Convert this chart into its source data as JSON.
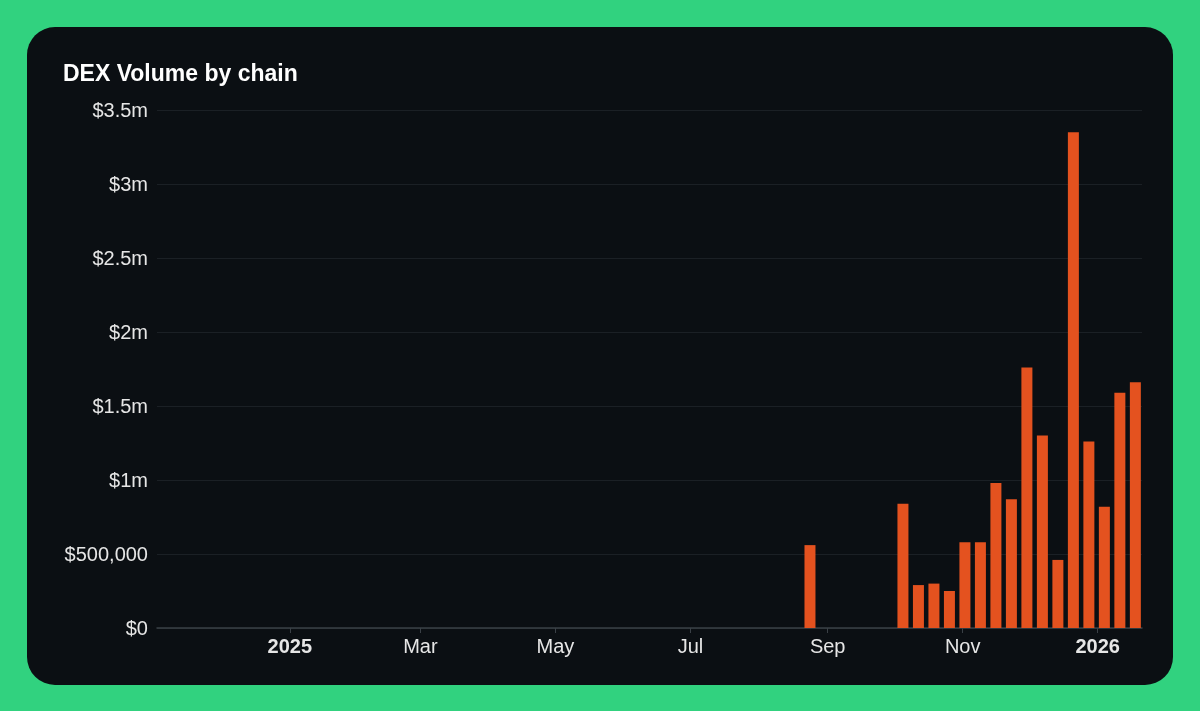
{
  "chart_data": {
    "type": "bar",
    "title": "DEX Volume by chain",
    "x": [
      "2025-08-24",
      "2025-10-05",
      "2025-10-12",
      "2025-10-19",
      "2025-10-26",
      "2025-11-02",
      "2025-11-09",
      "2025-11-16",
      "2025-11-23",
      "2025-11-30",
      "2025-12-07",
      "2025-12-14",
      "2025-12-21",
      "2025-12-28",
      "2026-01-04",
      "2026-01-11",
      "2026-01-18"
    ],
    "values": [
      560000,
      840000,
      290000,
      300000,
      250000,
      580000,
      580000,
      980000,
      870000,
      1760000,
      1300000,
      460000,
      3350000,
      1260000,
      820000,
      1590000,
      1660000
    ],
    "color": "#e4521f",
    "xlim": [
      "2024-11-02",
      "2026-01-21"
    ],
    "xticks": [
      {
        "value": "2025-01-01",
        "label": "2025"
      },
      {
        "value": "2025-03-01",
        "label": "Mar"
      },
      {
        "value": "2025-05-01",
        "label": "May"
      },
      {
        "value": "2025-07-01",
        "label": "Jul"
      },
      {
        "value": "2025-09-01",
        "label": "Sep"
      },
      {
        "value": "2025-11-01",
        "label": "Nov"
      },
      {
        "value": "2026-01-01",
        "label": "2026"
      }
    ],
    "ylim": [
      0,
      3500000
    ],
    "yticks": [
      {
        "value": 0,
        "label": "$0"
      },
      {
        "value": 500000,
        "label": "$500,000"
      },
      {
        "value": 1000000,
        "label": "$1m"
      },
      {
        "value": 1500000,
        "label": "$1.5m"
      },
      {
        "value": 2000000,
        "label": "$2m"
      },
      {
        "value": 2500000,
        "label": "$2.5m"
      },
      {
        "value": 3000000,
        "label": "$3m"
      },
      {
        "value": 3500000,
        "label": "$3.5m"
      }
    ],
    "grid": "y"
  }
}
